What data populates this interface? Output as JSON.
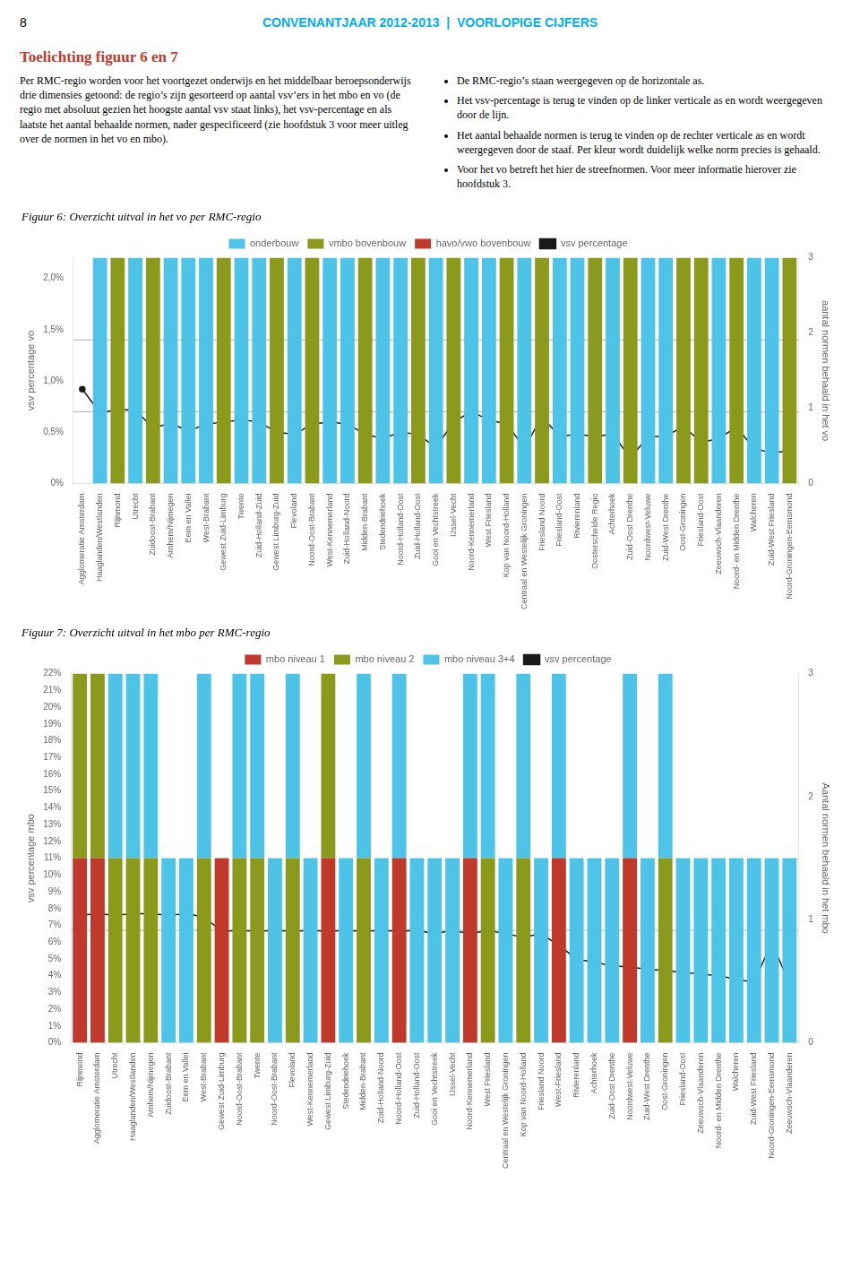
{
  "page": {
    "page_num": "8",
    "header": {
      "text": "CONVENANTJAAR 2012-2013  |  VOORLOPIGE CIJFERS",
      "color": "#00aeef"
    },
    "heading": {
      "text": "Toelichting figuur 6 en 7",
      "color": "#c0392b"
    },
    "body_left": "Per RMC-regio worden voor het voortgezet onderwijs en het middelbaar beroepsonderwijs drie dimensies getoond: de regio’s zijn gesorteerd op aantal vsv’ers in het mbo en vo (de regio met absoluut gezien het hoogste aantal vsv staat links), het vsv-percentage en als laatste het aantal behaalde normen, nader gespecificeerd (zie hoofdstuk 3 voor meer uitleg over de normen in het vo en mbo).",
    "body_right": [
      "De RMC‐regio’s staan weergegeven op de horizontale as.",
      "Het vsv-percentage is terug te vinden op de linker verticale as en wordt weergegeven door de lijn.",
      "Het aantal behaalde normen is terug te vinden op de rechter verticale as en wordt weergegeven door de staaf. Per kleur wordt duidelijk welke norm precies is gehaald.",
      "Voor het vo betreft het hier de streefnormen. Voor meer informatie hierover zie hoofdstuk 3."
    ]
  },
  "chart_data": [
    {
      "type": "bar",
      "title": "Figuur 6: Overzicht uitval in het vo per RMC-regio",
      "categories": [
        "Agglomeratie Amsterdam",
        "Haaglanden/Westlanden",
        "Rijnmond",
        "Utrecht",
        "Zuidoost-Brabant",
        "Arnhem/Nijmegen",
        "Eem en Vallei",
        "West-Brabant",
        "Gewest Zuid-Limburg",
        "Twente",
        "Zuid-Holland-Zuid",
        "Gewest Limburg-Zuid",
        "Flevoland",
        "Noord-Oost-Brabant",
        "West-Kennemerland",
        "Zuid-Holland-Noord",
        "Midden-Brabant",
        "Stedendriehoek",
        "Noord-Holland-Oost",
        "Zuid-Holland-Oost",
        "Gooi en Vechtstreek",
        "IJssel-Vecht",
        "Noord-Kennemerland",
        "West Friesland",
        "Kop van Noord-Holland",
        "Centraal en Westelijk Groningen",
        "Friesland Noord",
        "Friesland-Oost",
        "Rivierenland",
        "Oosterschelde Regio",
        "Achterhoek",
        "Zuid-Oost Drenthe",
        "Noordwest-Veluwe",
        "Zuid-West Drenthe",
        "Oost-Groningen",
        "Friesland-Oost",
        "Zeeuwsch-Vlaanderen",
        "Noord- en Midden Drenthe",
        "Walcheren",
        "Zuid-West Friesland",
        "Noord-Groningen-Eemsmond"
      ],
      "series": [
        {
          "name": "onderbouw",
          "color": "#4dc3e8",
          "values": [
            null,
            0.022,
            null,
            0.022,
            null,
            0.022,
            0.022,
            0.022,
            null,
            0.022,
            0.022,
            null,
            0.022,
            null,
            0.022,
            0.022,
            null,
            0.022,
            0.022,
            null,
            0.022,
            null,
            0.022,
            0.022,
            null,
            0.022,
            null,
            0.022,
            0.022,
            null,
            0.022,
            null,
            0.022,
            0.022,
            null,
            null,
            0.022,
            null,
            0.022,
            0.022,
            null
          ]
        },
        {
          "name": "vmbo bovenbouw",
          "color": "#8b9a1a",
          "values": [
            null,
            null,
            0.022,
            null,
            0.022,
            null,
            null,
            null,
            0.022,
            null,
            null,
            0.022,
            null,
            0.022,
            null,
            null,
            0.022,
            null,
            null,
            0.022,
            null,
            0.022,
            null,
            null,
            0.022,
            null,
            0.022,
            null,
            null,
            0.022,
            null,
            0.022,
            null,
            null,
            0.022,
            0.022,
            null,
            0.022,
            null,
            null,
            0.022
          ]
        },
        {
          "name": "havo/vwo bovenbouw",
          "color": "#c0392b",
          "values": [
            null,
            null,
            null,
            null,
            null,
            null,
            null,
            null,
            null,
            null,
            null,
            null,
            null,
            null,
            null,
            null,
            null,
            null,
            null,
            null,
            null,
            null,
            null,
            null,
            null,
            null,
            null,
            null,
            null,
            null,
            null,
            null,
            null,
            null,
            null,
            null,
            null,
            null,
            null,
            null,
            null
          ]
        },
        {
          "name": "vsv percentage",
          "type": "line",
          "color": "#1a1a1a",
          "marker": "circle",
          "values": [
            0.0092,
            0.0069,
            0.0072,
            0.0072,
            0.0054,
            0.0059,
            0.0051,
            0.0058,
            0.006,
            0.0062,
            0.006,
            0.005,
            0.0048,
            0.0058,
            0.006,
            0.0058,
            0.0048,
            0.0044,
            0.005,
            0.0048,
            0.0035,
            0.006,
            0.007,
            0.0062,
            0.0058,
            0.0035,
            0.0065,
            0.0046,
            0.0048,
            0.0046,
            0.0048,
            0.0025,
            0.0046,
            0.0046,
            0.0056,
            0.004,
            0.0044,
            0.0055,
            0.0034,
            0.003,
            0.0032
          ]
        }
      ],
      "ylabel": "vsv percentage vo",
      "y2label": "aantal normen behaald in het vo",
      "ylim": [
        0.0,
        0.022
      ],
      "yticks": [
        {
          "value": 0.0,
          "label": "0%"
        },
        {
          "value": 0.005,
          "label": "0,5%"
        },
        {
          "value": 0.01,
          "label": "1,0%"
        },
        {
          "value": 0.015,
          "label": "1,5%"
        },
        {
          "value": 0.02,
          "label": "2,0%"
        }
      ],
      "y2lim": [
        0,
        3
      ],
      "y2ticks": [
        0,
        1,
        2,
        3
      ],
      "hlines": {
        "values": [
          0.007,
          0.014
        ],
        "color": "#b0b0b0"
      },
      "legend": "top",
      "grid": false
    },
    {
      "type": "bar",
      "title": "Figuur 7: Overzicht uitval in het mbo per RMC-regio",
      "categories": [
        "Rijnmond",
        "Agglomeratie Amsterdam",
        "Utrecht",
        "Haaglanden/Westlanden",
        "Arnhem/Nijmegen",
        "Zuidoost-Brabant",
        "Eem en Vallei",
        "West-Brabant",
        "Gewest Zuid-Limburg",
        "Noord-Oost-Brabant",
        "Twente",
        "Noord-Oost-Brabant",
        "Flevoland",
        "West-Kennemerland",
        "Gewest Limburg-Zuid",
        "Stedendriehoek",
        "Midden-Brabant",
        "Zuid-Holland-Noord",
        "Noord-Holland-Oost",
        "Zuid-Holland-Oost",
        "Gooi en Vechtstreek",
        "IJssel-Vecht",
        "Noord-Kennemerland",
        "West Friesland",
        "Centraal en Westelijk Groningen",
        "Kop van Noord-Holland",
        "Friesland Noord",
        "West-Friesland",
        "Rivierenland",
        "Achterhoek",
        "Zuid-Oost Drenthe",
        "Noordwest-Veluwe",
        "Zuid-West Drenthe",
        "Oost-Groningen",
        "Friesland-Oost",
        "Zeeuwsch-Vlaanderen",
        "Noord- en Midden Drenthe",
        "Walcheren",
        "Zuid-West Friesland",
        "Noord-Groningen-Eemsmond",
        "Zeeuwsch-Vlaanderen"
      ],
      "series": [
        {
          "name": "mbo niveau 1",
          "color": "#c0392b",
          "values": [
            0.11,
            0.11,
            0,
            0,
            0,
            0,
            0,
            0,
            0.11,
            0,
            0,
            0,
            0,
            0,
            0.11,
            0,
            0,
            0,
            0.11,
            0,
            0,
            0,
            0.11,
            0,
            0,
            0,
            0,
            0.11,
            0,
            0,
            0,
            0.11,
            0,
            0,
            0,
            0,
            0,
            0,
            0,
            0,
            0
          ]
        },
        {
          "name": "mbo niveau 2",
          "color": "#8b9a1a",
          "values": [
            0.11,
            0.11,
            0.11,
            0.11,
            0.11,
            0,
            0,
            0.11,
            0,
            0.11,
            0.11,
            0,
            0.11,
            0,
            0.11,
            0,
            0.11,
            0,
            0,
            0,
            0,
            0,
            0,
            0.11,
            0,
            0.11,
            0,
            0,
            0,
            0,
            0,
            0,
            0,
            0.11,
            0,
            0,
            0,
            0,
            0,
            0,
            0
          ]
        },
        {
          "name": "mbo niveau 3+4",
          "color": "#4dc3e8",
          "values": [
            0,
            0,
            0.11,
            0.11,
            0.11,
            0.11,
            0.11,
            0.11,
            0,
            0.11,
            0.11,
            0.11,
            0.11,
            0.11,
            0,
            0.11,
            0.11,
            0.11,
            0.11,
            0.11,
            0.11,
            0.11,
            0.11,
            0.11,
            0.11,
            0.11,
            0.11,
            0.11,
            0.11,
            0.11,
            0.11,
            0.11,
            0.11,
            0.11,
            0.11,
            0.11,
            0.11,
            0.11,
            0.11,
            0.11,
            0.11
          ]
        },
        {
          "name": "vsv percentage",
          "type": "line",
          "color": "#1a1a1a",
          "marker": "circle",
          "values": [
            0.076,
            0.077,
            0.076,
            0.077,
            0.077,
            0.076,
            0.077,
            0.075,
            0.0665,
            0.067,
            0.0665,
            0.067,
            0.0665,
            0.067,
            0.0665,
            0.067,
            0.0665,
            0.067,
            0.0665,
            0.067,
            0.065,
            0.067,
            0.065,
            0.067,
            0.065,
            0.063,
            0.065,
            0.058,
            0.05,
            0.048,
            0.046,
            0.045,
            0.044,
            0.043,
            0.042,
            0.041,
            0.04,
            0.038,
            0.036,
            0.06,
            0.035
          ]
        }
      ],
      "stacked": true,
      "ylabel": "vsv percentage mbo",
      "y2label": "Aantal normen behaald in het mbo",
      "ylim": [
        0.0,
        0.22
      ],
      "yticks": [
        {
          "value": 0.0,
          "label": "0%"
        },
        {
          "value": 0.01,
          "label": "1%"
        },
        {
          "value": 0.02,
          "label": "2%"
        },
        {
          "value": 0.03,
          "label": "3%"
        },
        {
          "value": 0.04,
          "label": "4%"
        },
        {
          "value": 0.05,
          "label": "5%"
        },
        {
          "value": 0.06,
          "label": "6%"
        },
        {
          "value": 0.07,
          "label": "7%"
        },
        {
          "value": 0.08,
          "label": "8%"
        },
        {
          "value": 0.09,
          "label": "9%"
        },
        {
          "value": 0.1,
          "label": "10%"
        },
        {
          "value": 0.11,
          "label": "11%"
        },
        {
          "value": 0.12,
          "label": "12%"
        },
        {
          "value": 0.13,
          "label": "13%"
        },
        {
          "value": 0.14,
          "label": "14%"
        },
        {
          "value": 0.15,
          "label": "15%"
        },
        {
          "value": 0.16,
          "label": "16%"
        },
        {
          "value": 0.17,
          "label": "17%"
        },
        {
          "value": 0.18,
          "label": "18%"
        },
        {
          "value": 0.19,
          "label": "19%"
        },
        {
          "value": 0.2,
          "label": "20%"
        },
        {
          "value": 0.21,
          "label": "21%"
        },
        {
          "value": 0.22,
          "label": "22%"
        }
      ],
      "y2lim": [
        0,
        3
      ],
      "y2ticks": [
        0,
        1,
        2,
        3
      ],
      "hlines": {
        "values": [
          0.067
        ],
        "color": "#b0b0b0"
      },
      "legend": "top",
      "grid": false
    }
  ]
}
